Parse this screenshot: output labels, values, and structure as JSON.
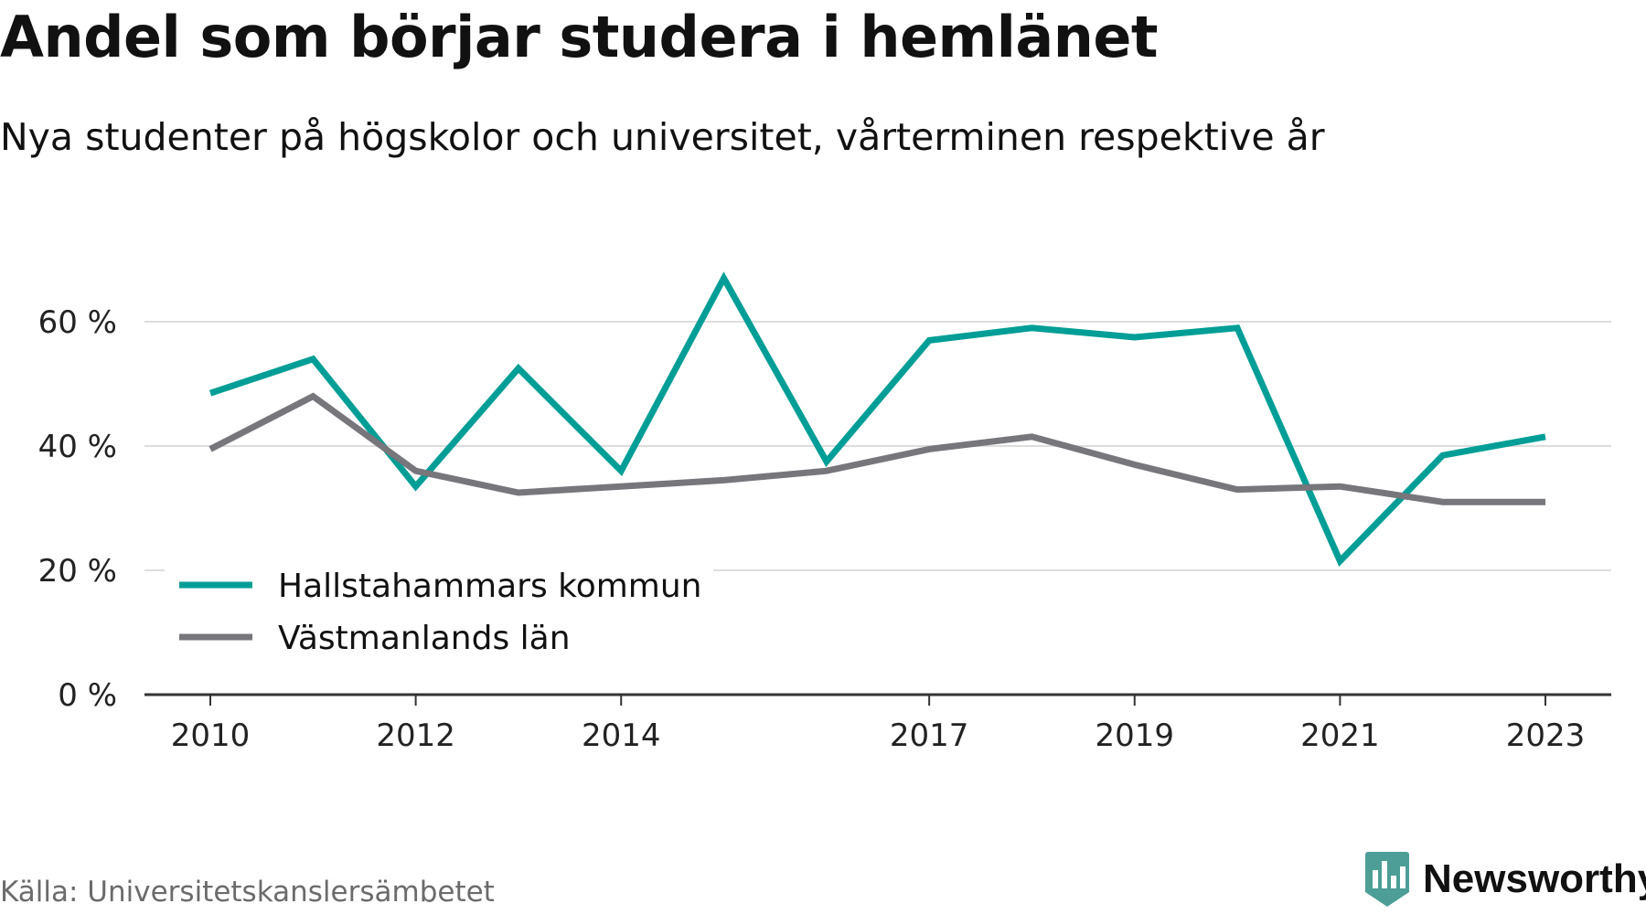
{
  "title": "Andel som börjar studera i hemlänet",
  "subtitle": "Nya studenter på högskolor och universitet, vårterminen respektive år",
  "source": "Källa: Universitetskanslersämbetet",
  "brand": {
    "name": "Newsworthy",
    "color": "#4c9e96"
  },
  "colors": {
    "hallstahammar": "#009e96",
    "vastmanland": "#77767b",
    "grid": "#dddddd",
    "axis": "#333333"
  },
  "chart_data": {
    "type": "line",
    "title": "Andel som börjar studera i hemlänet",
    "subtitle": "Nya studenter på högskolor och universitet, vårterminen respektive år",
    "x": [
      2010,
      2011,
      2012,
      2013,
      2014,
      2015,
      2016,
      2017,
      2018,
      2019,
      2020,
      2021,
      2022,
      2023
    ],
    "x_ticks": [
      "2010",
      "2012",
      "2014",
      "2017",
      "2019",
      "2021",
      "2023"
    ],
    "y_ticks": [
      "0 %",
      "20 %",
      "40 %",
      "60 %"
    ],
    "ylim": [
      0,
      70
    ],
    "grid": true,
    "legend_position": "bottom-left",
    "series": [
      {
        "name": "Hallstahammars kommun",
        "color": "#009e96",
        "values": [
          48.5,
          54,
          33.5,
          52.5,
          36,
          67,
          37.5,
          57,
          59,
          57.5,
          59,
          21.5,
          38.5,
          41.5
        ]
      },
      {
        "name": "Västmanlands län",
        "color": "#77767b",
        "values": [
          39.5,
          48,
          36,
          32.5,
          33.5,
          34.5,
          36,
          39.5,
          41.5,
          37,
          33,
          33.5,
          31,
          31
        ]
      }
    ]
  }
}
